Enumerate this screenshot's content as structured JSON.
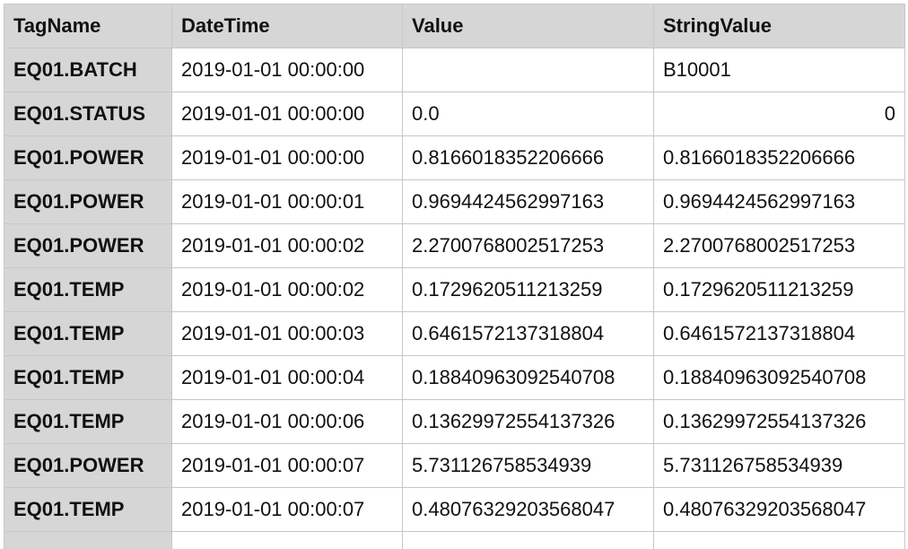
{
  "table": {
    "columns": [
      "TagName",
      "DateTime",
      "Value",
      "StringValue"
    ],
    "rows": [
      {
        "tag": "EQ01.BATCH",
        "datetime": "2019-01-01 00:00:00",
        "value": "",
        "string_value": "B10001",
        "string_align": "left"
      },
      {
        "tag": "EQ01.STATUS",
        "datetime": "2019-01-01 00:00:00",
        "value": "0.0",
        "string_value": "0",
        "string_align": "right"
      },
      {
        "tag": "EQ01.POWER",
        "datetime": "2019-01-01 00:00:00",
        "value": "0.8166018352206666",
        "string_value": "0.8166018352206666",
        "string_align": "left"
      },
      {
        "tag": "EQ01.POWER",
        "datetime": "2019-01-01 00:00:01",
        "value": "0.9694424562997163",
        "string_value": "0.9694424562997163",
        "string_align": "left"
      },
      {
        "tag": "EQ01.POWER",
        "datetime": "2019-01-01 00:00:02",
        "value": "2.2700768002517253",
        "string_value": "2.2700768002517253",
        "string_align": "left"
      },
      {
        "tag": "EQ01.TEMP",
        "datetime": "2019-01-01 00:00:02",
        "value": "0.1729620511213259",
        "string_value": "0.1729620511213259",
        "string_align": "left"
      },
      {
        "tag": "EQ01.TEMP",
        "datetime": "2019-01-01 00:00:03",
        "value": "0.6461572137318804",
        "string_value": "0.6461572137318804",
        "string_align": "left"
      },
      {
        "tag": "EQ01.TEMP",
        "datetime": "2019-01-01 00:00:04",
        "value": "0.18840963092540708",
        "string_value": "0.18840963092540708",
        "string_align": "left"
      },
      {
        "tag": "EQ01.TEMP",
        "datetime": "2019-01-01 00:00:06",
        "value": "0.13629972554137326",
        "string_value": "0.13629972554137326",
        "string_align": "left"
      },
      {
        "tag": "EQ01.POWER",
        "datetime": "2019-01-01 00:00:07",
        "value": "5.731126758534939",
        "string_value": "5.731126758534939",
        "string_align": "left"
      },
      {
        "tag": "EQ01.TEMP",
        "datetime": "2019-01-01 00:00:07",
        "value": "0.48076329203568047",
        "string_value": "0.48076329203568047",
        "string_align": "left"
      }
    ]
  }
}
